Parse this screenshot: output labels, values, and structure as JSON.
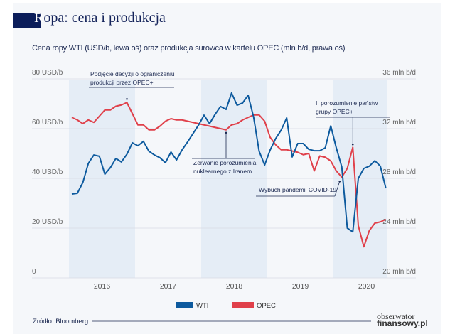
{
  "title_first_letter": "R",
  "title_rest": "opa: cena i produkcja",
  "subtitle": "Cena ropy WTI (USD/b, lewa oś) oraz produkcja surowca w kartelu OPEC (mln b/d, prawa oś)",
  "source": "Źródło: Bloomberg",
  "logo": {
    "line1": "obserwator",
    "line2": "finansowy.pl"
  },
  "chart_data": {
    "type": "line",
    "title": "Ropa: cena i produkcja",
    "subtitle": "Cena ropy WTI (USD/b, lewa oś) oraz produkcja surowca w kartelu OPEC (mln b/d, prawa oś)",
    "x_frequency": "monthly",
    "x_start": "2016-01",
    "x_tick_labels": [
      "2016",
      "2017",
      "2018",
      "2019",
      "2020"
    ],
    "y_left": {
      "range": [
        0,
        80
      ],
      "ticks": [
        0,
        20,
        40,
        60,
        80
      ],
      "tick_labels": [
        "0",
        "20 USD/b",
        "40 USD/b",
        "60 USD/b",
        "80 USD/b"
      ]
    },
    "y_right": {
      "range": [
        20,
        36
      ],
      "ticks": [
        20,
        24,
        28,
        32,
        36
      ],
      "tick_labels": [
        "20 mln b/d",
        "24 mln b/d",
        "28 mln b/d",
        "32 mln b/d",
        "36 mln b/d"
      ]
    },
    "grid": true,
    "shaded_years": [
      "2016",
      "2018",
      "2020"
    ],
    "legend_position": "bottom",
    "series": [
      {
        "name": "WTI",
        "axis": "left",
        "color": "#0d5a9e",
        "values": [
          33.7,
          34.0,
          38.3,
          46.0,
          49.4,
          48.9,
          41.7,
          44.3,
          48.0,
          46.6,
          49.7,
          54.3,
          53.1,
          54.9,
          50.9,
          49.4,
          48.3,
          46.3,
          50.6,
          47.4,
          51.4,
          54.6,
          58.0,
          61.4,
          65.4,
          62.0,
          65.7,
          68.9,
          67.7,
          74.3,
          69.4,
          70.3,
          73.4,
          64.6,
          50.9,
          45.4,
          51.4,
          56.0,
          59.4,
          64.3,
          48.6,
          54.0,
          54.0,
          51.7,
          51.1,
          51.1,
          52.3,
          61.1,
          52.3,
          44.6,
          20.0,
          18.5,
          40.0,
          44.0,
          44.9,
          47.1,
          44.9,
          36.0
        ]
      },
      {
        "name": "OPEC",
        "axis": "right",
        "color": "#e0404a",
        "values": [
          32.9,
          32.7,
          32.4,
          32.7,
          32.5,
          33.0,
          33.5,
          33.5,
          33.8,
          33.9,
          34.1,
          33.2,
          32.3,
          32.3,
          31.9,
          31.9,
          32.2,
          32.6,
          32.8,
          32.7,
          32.7,
          32.6,
          32.5,
          32.4,
          32.3,
          32.2,
          32.1,
          32.0,
          31.9,
          32.3,
          32.4,
          32.7,
          32.9,
          33.1,
          33.1,
          32.6,
          31.3,
          30.7,
          30.3,
          30.3,
          30.2,
          30.1,
          29.9,
          30.0,
          28.6,
          29.8,
          29.7,
          29.4,
          28.6,
          28.1,
          28.8,
          30.5,
          24.2,
          22.5,
          23.8,
          24.4,
          24.5,
          24.7
        ]
      }
    ],
    "annotations": [
      {
        "text": [
          "Podjęcie decyzji o ograniczeniu",
          "produkcji przez OPEC+"
        ],
        "series": "OPEC",
        "index": 10
      },
      {
        "text": [
          "Zerwanie porozumienia",
          "nuklearnego z Iranem"
        ],
        "series": "OPEC",
        "index": 28
      },
      {
        "text": [
          "II porozumienie państw",
          "grupy OPEC+"
        ],
        "series": "OPEC",
        "index": 51
      },
      {
        "text": [
          "Wybuch pandemii COVID-19"
        ],
        "series": "OPEC",
        "index": 49
      }
    ]
  }
}
